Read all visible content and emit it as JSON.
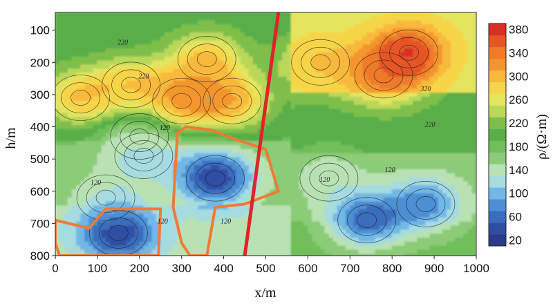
{
  "chart_data": {
    "type": "heatmap",
    "title": "",
    "xlabel": "x/m",
    "ylabel": "h/m",
    "colorbar_label": "ρ/(Ω·m)",
    "xlim": [
      0,
      1000
    ],
    "ylim": [
      800,
      50
    ],
    "x_ticks": [
      "0",
      "100",
      "200",
      "300",
      "400",
      "500",
      "600",
      "700",
      "800",
      "900",
      "1000"
    ],
    "y_ticks": [
      "100",
      "200",
      "300",
      "400",
      "500",
      "600",
      "700",
      "800"
    ],
    "colorbar_ticks": [
      "20",
      "60",
      "100",
      "140",
      "180",
      "220",
      "260",
      "300",
      "340",
      "380"
    ],
    "color_levels": [
      {
        "min": 20,
        "max": 40,
        "color": "#2b3a8a"
      },
      {
        "min": 40,
        "max": 60,
        "color": "#2f4fa3"
      },
      {
        "min": 60,
        "max": 80,
        "color": "#3a6dbd"
      },
      {
        "min": 80,
        "max": 100,
        "color": "#4e8fd3"
      },
      {
        "min": 100,
        "max": 120,
        "color": "#72b8e6"
      },
      {
        "min": 120,
        "max": 140,
        "color": "#a6dbe0"
      },
      {
        "min": 140,
        "max": 160,
        "color": "#b9e2b4"
      },
      {
        "min": 160,
        "max": 180,
        "color": "#8ccb78"
      },
      {
        "min": 180,
        "max": 200,
        "color": "#6fbf5a"
      },
      {
        "min": 200,
        "max": 220,
        "color": "#5aae48"
      },
      {
        "min": 220,
        "max": 240,
        "color": "#7ebf4c"
      },
      {
        "min": 240,
        "max": 260,
        "color": "#b9d85a"
      },
      {
        "min": 260,
        "max": 280,
        "color": "#e4e45e"
      },
      {
        "min": 280,
        "max": 300,
        "color": "#f7d54a"
      },
      {
        "min": 300,
        "max": 320,
        "color": "#f9b93c"
      },
      {
        "min": 320,
        "max": 340,
        "color": "#f4962f"
      },
      {
        "min": 340,
        "max": 360,
        "color": "#ee7a2a"
      },
      {
        "min": 360,
        "max": 380,
        "color": "#e65527"
      },
      {
        "min": 380,
        "max": 400,
        "color": "#d72f25"
      }
    ],
    "anomalies": [
      {
        "x": 150,
        "h": 730,
        "value": 40
      },
      {
        "x": 380,
        "h": 560,
        "value": 40
      },
      {
        "x": 740,
        "h": 690,
        "value": 70
      },
      {
        "x": 880,
        "h": 640,
        "value": 90
      },
      {
        "x": 840,
        "h": 170,
        "value": 380
      },
      {
        "x": 780,
        "h": 240,
        "value": 340
      },
      {
        "x": 630,
        "h": 200,
        "value": 300
      },
      {
        "x": 300,
        "h": 320,
        "value": 330
      },
      {
        "x": 420,
        "h": 320,
        "value": 310
      },
      {
        "x": 360,
        "h": 190,
        "value": 300
      },
      {
        "x": 60,
        "h": 310,
        "value": 300
      },
      {
        "x": 180,
        "h": 270,
        "value": 290
      },
      {
        "x": 210,
        "h": 490,
        "value": 130
      },
      {
        "x": 200,
        "h": 430,
        "value": 160
      },
      {
        "x": 650,
        "h": 560,
        "value": 150
      },
      {
        "x": 120,
        "h": 620,
        "value": 150
      }
    ],
    "contour_labels": [
      {
        "x": 160,
        "h": 145,
        "text": "220"
      },
      {
        "x": 210,
        "h": 250,
        "text": "220"
      },
      {
        "x": 880,
        "h": 290,
        "text": "320"
      },
      {
        "x": 890,
        "h": 400,
        "text": "220"
      },
      {
        "x": 260,
        "h": 410,
        "text": "120"
      },
      {
        "x": 96,
        "h": 580,
        "text": "120"
      },
      {
        "x": 640,
        "h": 570,
        "text": "120"
      },
      {
        "x": 795,
        "h": 540,
        "text": "120"
      },
      {
        "x": 255,
        "h": 700,
        "text": "120"
      },
      {
        "x": 405,
        "h": 700,
        "text": "120"
      }
    ],
    "fault_line": {
      "x": [
        530,
        450
      ],
      "h": [
        45,
        800
      ]
    },
    "outlines": [
      {
        "points": [
          [
            0,
            690
          ],
          [
            80,
            715
          ],
          [
            120,
            655
          ],
          [
            250,
            655
          ],
          [
            245,
            800
          ],
          [
            10,
            800
          ],
          [
            0,
            760
          ]
        ]
      },
      {
        "points": [
          [
            310,
            400
          ],
          [
            370,
            410
          ],
          [
            430,
            440
          ],
          [
            500,
            470
          ],
          [
            530,
            600
          ],
          [
            450,
            640
          ],
          [
            380,
            650
          ],
          [
            360,
            800
          ],
          [
            320,
            800
          ],
          [
            300,
            760
          ],
          [
            280,
            650
          ],
          [
            290,
            420
          ]
        ]
      }
    ]
  }
}
